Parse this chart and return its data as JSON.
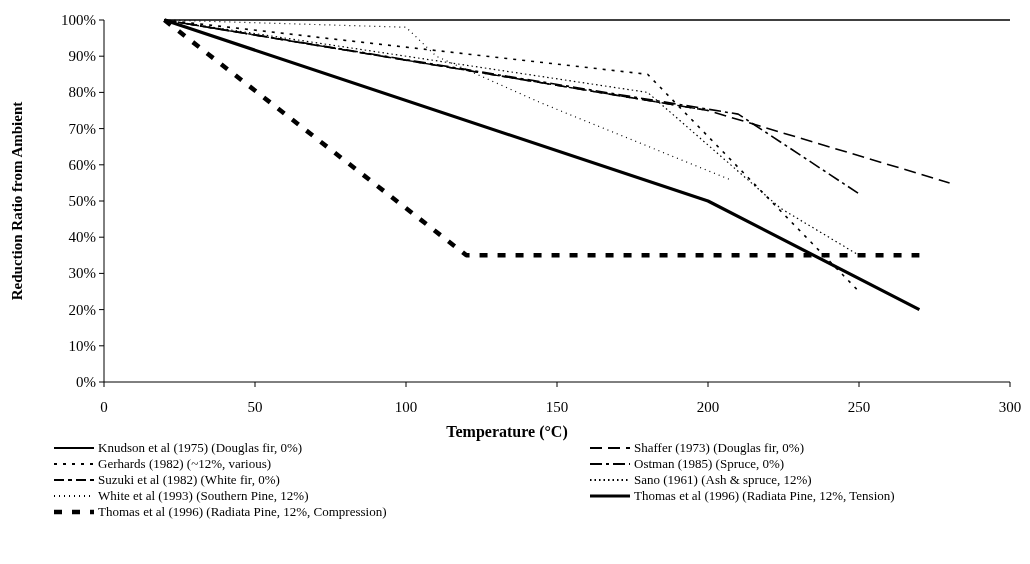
{
  "chart_data": {
    "type": "line",
    "xlabel": "Temperature (°C)",
    "ylabel": "Reduction Ratio from Ambient",
    "xlim": [
      0,
      300
    ],
    "xticks": [
      0,
      50,
      100,
      150,
      200,
      250,
      300
    ],
    "ylim": [
      0,
      100
    ],
    "yticks": [
      {
        "value": 0,
        "label": "0%"
      },
      {
        "value": 10,
        "label": "10%"
      },
      {
        "value": 20,
        "label": "20%"
      },
      {
        "value": 30,
        "label": "30%"
      },
      {
        "value": 40,
        "label": "40%"
      },
      {
        "value": 50,
        "label": "50%"
      },
      {
        "value": 60,
        "label": "60%"
      },
      {
        "value": 70,
        "label": "70%"
      },
      {
        "value": 80,
        "label": "80%"
      },
      {
        "value": 90,
        "label": "90%"
      },
      {
        "value": 100,
        "label": "100%"
      }
    ],
    "grid": false,
    "legend": "bottom",
    "series": [
      {
        "name": "Knudson et al (1975) (Douglas fir, 0%)",
        "color": "#000000",
        "line_style": "solid",
        "x": [
          20,
          300
        ],
        "values": [
          100,
          100
        ]
      },
      {
        "name": "Shaffer (1973) (Douglas fir, 0%)",
        "color": "#000000",
        "line_style": "dashed",
        "x": [
          20,
          200,
          280
        ],
        "values": [
          100,
          75,
          55
        ]
      },
      {
        "name": "Gerhards (1982) (~12%, various)",
        "color": "#000000",
        "line_style": "dashed",
        "x": [
          20,
          180,
          250
        ],
        "values": [
          100,
          85,
          25
        ]
      },
      {
        "name": "Ostman (1985) (Spruce, 0%)",
        "color": "#000000",
        "line_style": "dashed",
        "x": [
          20,
          210,
          250
        ],
        "values": [
          100,
          74,
          52
        ]
      },
      {
        "name": "Suzuki et al (1982) (White fir, 0%)",
        "color": "#000000",
        "line_style": "dashed",
        "x": [
          20,
          200
        ],
        "values": [
          100,
          75
        ]
      },
      {
        "name": "Sano (1961) (Ash & spruce, 12%)",
        "color": "#000000",
        "line_style": "dotted",
        "x": [
          20,
          180,
          224,
          250
        ],
        "values": [
          100,
          80,
          48,
          35
        ]
      },
      {
        "name": "White et al (1993)  (Southern Pine, 12%)",
        "color": "#000000",
        "line_style": "dotted",
        "x": [
          20,
          100,
          110,
          145,
          207
        ],
        "values": [
          100,
          98,
          90,
          77,
          56
        ]
      },
      {
        "name": "Thomas et al (1996) (Radiata Pine, 12%, Tension)",
        "color": "#000000",
        "line_style": "solid",
        "x": [
          20,
          200,
          270
        ],
        "values": [
          100,
          50,
          20
        ]
      },
      {
        "name": "Thomas et al (1996) (Radiata Pine, 12%, Compression)",
        "color": "#000000",
        "line_style": "dashed",
        "x": [
          20,
          120,
          270
        ],
        "values": [
          100,
          35,
          35
        ]
      }
    ]
  }
}
